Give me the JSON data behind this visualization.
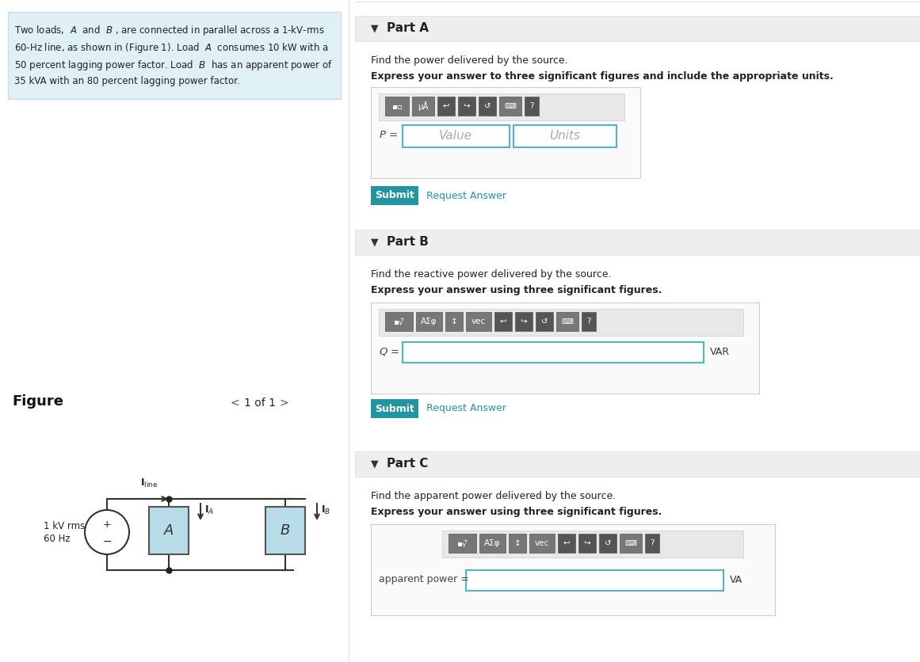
{
  "bg_color": "#ffffff",
  "left_panel_bg": "#e8f4f8",
  "left_panel_text": "Two loads,  A  and  B , are connected in parallel across a 1-kV-rms\n60-Hz line, as shown in (Figure 1). Load  A  consumes 10 kW with a\n50 percent lagging power factor. Load  B  has an apparent power of\n35 kVA with an 80 percent lagging power factor.",
  "figure_label": "Figure",
  "nav_text": "1 of 1",
  "right_panel_bg": "#f5f5f5",
  "part_a_title": "Part A",
  "part_a_q1": "Find the power delivered by the source.",
  "part_a_q2": "Express your answer to three significant figures and include the appropriate units.",
  "part_a_label": "P =",
  "part_a_val_placeholder": "Value",
  "part_a_unit_placeholder": "Units",
  "part_b_title": "Part B",
  "part_b_q1": "Find the reactive power delivered by the source.",
  "part_b_q2": "Express your answer using three significant figures.",
  "part_b_label": "Q =",
  "part_b_unit": "VAR",
  "part_c_title": "Part C",
  "part_c_q1": "Find the apparent power delivered by the source.",
  "part_c_q2": "Express your answer using three significant figures.",
  "part_c_label": "apparent power =",
  "part_c_unit": "VA",
  "submit_color": "#2196a0",
  "submit_text_color": "#ffffff",
  "request_answer_color": "#2196a0",
  "input_border_color": "#4db8c4",
  "section_header_bg": "#ebebeb",
  "toolbar_bg": "#909090",
  "toolbar_btn_color": "#777777"
}
